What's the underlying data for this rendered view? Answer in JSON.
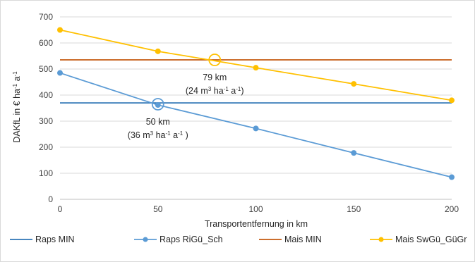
{
  "chart_data": {
    "type": "line",
    "xlabel": "Transportentfernung in km",
    "ylabel": "DAKfL in € ha⁻¹ a⁻¹",
    "xlim": [
      0,
      200
    ],
    "ylim": [
      0,
      700
    ],
    "x_ticks": [
      "0",
      "50",
      "100",
      "150",
      "200"
    ],
    "y_ticks": [
      "0",
      "100",
      "200",
      "300",
      "400",
      "500",
      "600",
      "700"
    ],
    "grid": "horizontal",
    "legend_position": "bottom",
    "series": [
      {
        "name": "Raps MIN",
        "color": "#2e75b6",
        "marker": false,
        "x": [
          0,
          200
        ],
        "y": [
          370,
          370
        ]
      },
      {
        "name": "Raps RiGü_Sch",
        "color": "#5b9bd5",
        "marker": true,
        "x": [
          0,
          50,
          100,
          150,
          200
        ],
        "y": [
          485,
          362,
          272,
          178,
          85
        ]
      },
      {
        "name": "Mais MIN",
        "color": "#c55a11",
        "marker": false,
        "x": [
          0,
          200
        ],
        "y": [
          535,
          535
        ]
      },
      {
        "name": "Mais SwGü_GüGr",
        "color": "#ffc000",
        "marker": true,
        "x": [
          0,
          50,
          100,
          150,
          200
        ],
        "y": [
          650,
          568,
          505,
          443,
          380
        ]
      }
    ],
    "annotations": [
      {
        "x": 79,
        "y": 535,
        "color": "#ffc000",
        "line1": "79 km",
        "line2_value": "(24 m",
        "line2_sup1": "3",
        "line2_mid1": " ha",
        "line2_sup2": "-1",
        "line2_mid2": " a",
        "line2_sup3": "-1",
        "line2_end": ")"
      },
      {
        "x": 50,
        "y": 365,
        "color": "#5b9bd5",
        "line1": "50 km",
        "line2_value": "(36 m",
        "line2_sup1": "3",
        "line2_mid1": " ha",
        "line2_sup2": "-1",
        "line2_mid2": " a",
        "line2_sup3": "-1",
        "line2_end": " )"
      }
    ]
  }
}
